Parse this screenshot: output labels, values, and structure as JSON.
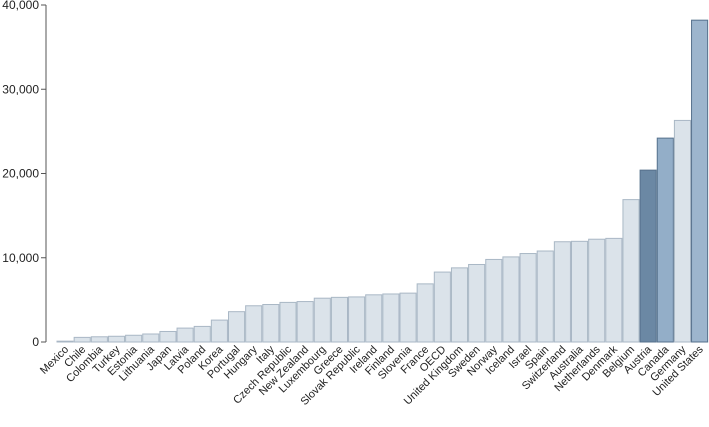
{
  "chart_data": {
    "type": "bar",
    "title": "",
    "xlabel": "",
    "ylabel": "",
    "ylim": [
      0,
      40000
    ],
    "yticks": [
      0,
      10000,
      20000,
      30000,
      40000
    ],
    "ytick_labels": [
      "0",
      "10,000",
      "20,000",
      "30,000",
      "40,000"
    ],
    "grid": false,
    "legend": "none",
    "categories": [
      "Mexico",
      "Chile",
      "Colombia",
      "Turkey",
      "Estonia",
      "Lithuania",
      "Japan",
      "Latvia",
      "Poland",
      "Korea",
      "Portugal",
      "Hungary",
      "Italy",
      "Czech Republic",
      "New Zealand",
      "Luxembourg",
      "Greece",
      "Slovak Republic",
      "Ireland",
      "Finland",
      "Slovenia",
      "France",
      "OECD",
      "United Kingdom",
      "Sweden",
      "Norway",
      "Iceland",
      "Israel",
      "Spain",
      "Switzerland",
      "Australia",
      "Netherlands",
      "Denmark",
      "Belgium",
      "Austria",
      "Canada",
      "Germany",
      "United States"
    ],
    "values": [
      100,
      550,
      620,
      680,
      800,
      950,
      1250,
      1650,
      1850,
      2600,
      3600,
      4300,
      4450,
      4700,
      4800,
      5200,
      5300,
      5350,
      5600,
      5700,
      5800,
      6900,
      8300,
      8800,
      9200,
      9800,
      10100,
      10500,
      10800,
      11900,
      11950,
      12200,
      12300,
      16900,
      20400,
      24200,
      26300,
      38200
    ],
    "colors": {
      "default": "#dbe3ea",
      "default_stroke": "#a9b7c5",
      "Austria": "#6b88a4",
      "Canada": "#93aec8",
      "United States": "#9db5cd",
      "highlight_stroke": "#55708c"
    }
  }
}
